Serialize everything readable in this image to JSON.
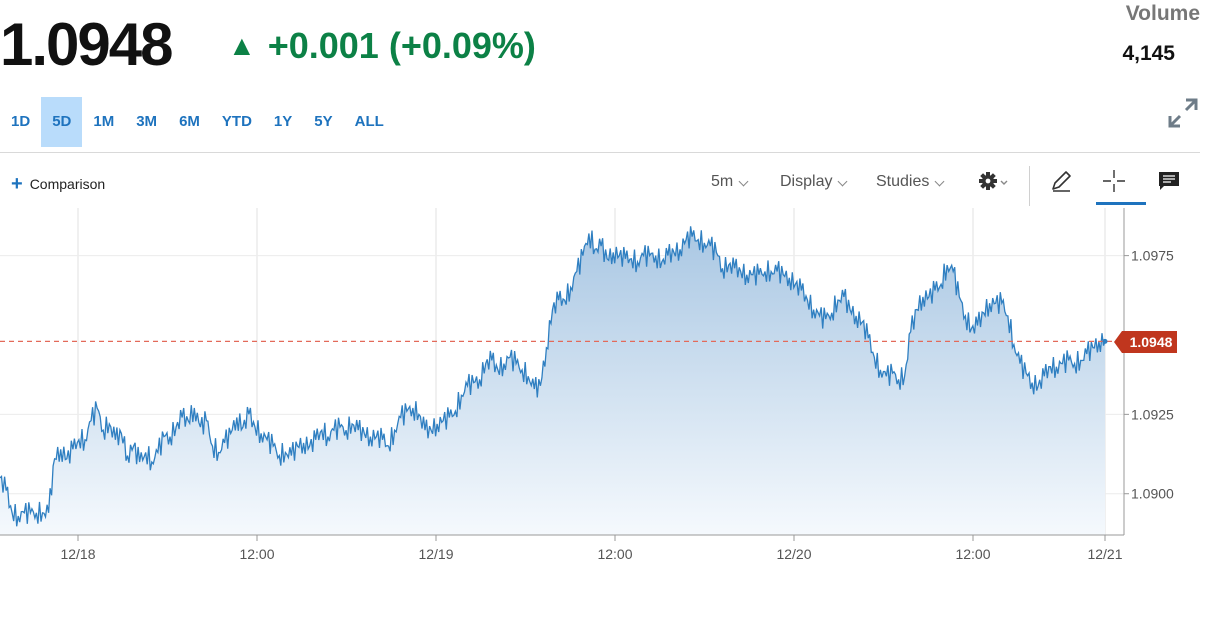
{
  "quote": {
    "price": "1.0948",
    "change_arrow": "▲",
    "change": "+0.001 (+0.09%)",
    "volume_label": "Volume",
    "volume_value": "4,145"
  },
  "ranges": [
    {
      "label": "1D",
      "active": false
    },
    {
      "label": "5D",
      "active": true
    },
    {
      "label": "1M",
      "active": false
    },
    {
      "label": "3M",
      "active": false
    },
    {
      "label": "6M",
      "active": false
    },
    {
      "label": "YTD",
      "active": false
    },
    {
      "label": "1Y",
      "active": false
    },
    {
      "label": "5Y",
      "active": false
    },
    {
      "label": "ALL",
      "active": false
    }
  ],
  "toolbar": {
    "comparison_plus": "+",
    "comparison_label": "Comparison",
    "interval_label": "5m",
    "display_label": "Display",
    "studies_label": "Studies"
  },
  "icons": [
    "expand-icon",
    "gear-icon",
    "pencil-icon",
    "crosshair-icon",
    "comment-icon"
  ],
  "colors": {
    "accent": "#1e73be",
    "up": "#0c8146",
    "line": "#2f7fc1",
    "fill_top": "#a9c7e3",
    "fill_bottom": "#f5f9fd",
    "last_price_line": "#e36a5a",
    "last_price_badge": "#c0361e"
  },
  "chart_data": {
    "type": "area",
    "title": "",
    "xlabel": "",
    "ylabel": "",
    "x_ticks": [
      "12/18",
      "12:00",
      "12/19",
      "12:00",
      "12/20",
      "12:00",
      "12/21"
    ],
    "y_ticks": [
      "1.0975",
      "1.0925",
      "1.0900"
    ],
    "ylim": [
      1.0887,
      1.099
    ],
    "last_value": "1.0948",
    "grid": true,
    "series": [
      {
        "values": [
          1.0905,
          1.0901,
          1.0894,
          1.0893,
          1.0894,
          1.0894,
          1.0894,
          1.0894,
          1.0894,
          1.0911,
          1.0914,
          1.0911,
          1.0914,
          1.0917,
          1.0917,
          1.0923,
          1.0927,
          1.092,
          1.0922,
          1.0917,
          1.0919,
          1.0912,
          1.0915,
          1.091,
          1.0913,
          1.091,
          1.0913,
          1.0918,
          1.0918,
          1.0921,
          1.0924,
          1.0923,
          1.0927,
          1.0921,
          1.0923,
          1.0915,
          1.0913,
          1.0916,
          1.0919,
          1.0924,
          1.0921,
          1.0925,
          1.0921,
          1.0919,
          1.0917,
          1.0915,
          1.0912,
          1.0913,
          1.0912,
          1.0915,
          1.0916,
          1.0915,
          1.0917,
          1.092,
          1.0918,
          1.092,
          1.0921,
          1.092,
          1.0922,
          1.092,
          1.0919,
          1.0918,
          1.0918,
          1.0917,
          1.0915,
          1.092,
          1.0924,
          1.0926,
          1.0927,
          1.0925,
          1.092,
          1.092,
          1.0922,
          1.0923,
          1.0924,
          1.0926,
          1.0931,
          1.0934,
          1.0935,
          1.0936,
          1.0941,
          1.0942,
          1.0939,
          1.0941,
          1.0943,
          1.0941,
          1.0939,
          1.0937,
          1.0933,
          1.0934,
          1.0946,
          1.0958,
          1.0961,
          1.0961,
          1.0965,
          1.097,
          1.0975,
          1.0982,
          1.0977,
          1.0978,
          1.0974,
          1.0976,
          1.0975,
          1.0974,
          1.0974,
          1.0973,
          1.0975,
          1.0975,
          1.0975,
          1.0973,
          1.0975,
          1.0976,
          1.0977,
          1.098,
          1.0981,
          1.098,
          1.0979,
          1.0978,
          1.0976,
          1.0971,
          1.0972,
          1.0971,
          1.097,
          1.0969,
          1.0969,
          1.0969,
          1.097,
          1.097,
          1.097,
          1.0969,
          1.0968,
          1.0966,
          1.0964,
          1.0961,
          1.0958,
          1.0956,
          1.0955,
          1.0957,
          1.0961,
          1.0962,
          1.0958,
          1.0956,
          1.0954,
          1.0949,
          1.0943,
          1.0939,
          1.0937,
          1.0938,
          1.0936,
          1.0937,
          1.0951,
          1.0958,
          1.0962,
          1.0962,
          1.0964,
          1.0966,
          1.0972,
          1.097,
          1.0962,
          1.0956,
          1.0952,
          1.0953,
          1.0957,
          1.096,
          1.096,
          1.096,
          1.0956,
          1.0947,
          1.0941,
          1.0938,
          1.0935,
          1.0934,
          1.0937,
          1.094,
          1.094,
          1.0941,
          1.0942,
          1.0941,
          1.0942,
          1.0944,
          1.0946,
          1.0948,
          1.0948
        ],
        "color": "#2f7fc1"
      }
    ]
  }
}
